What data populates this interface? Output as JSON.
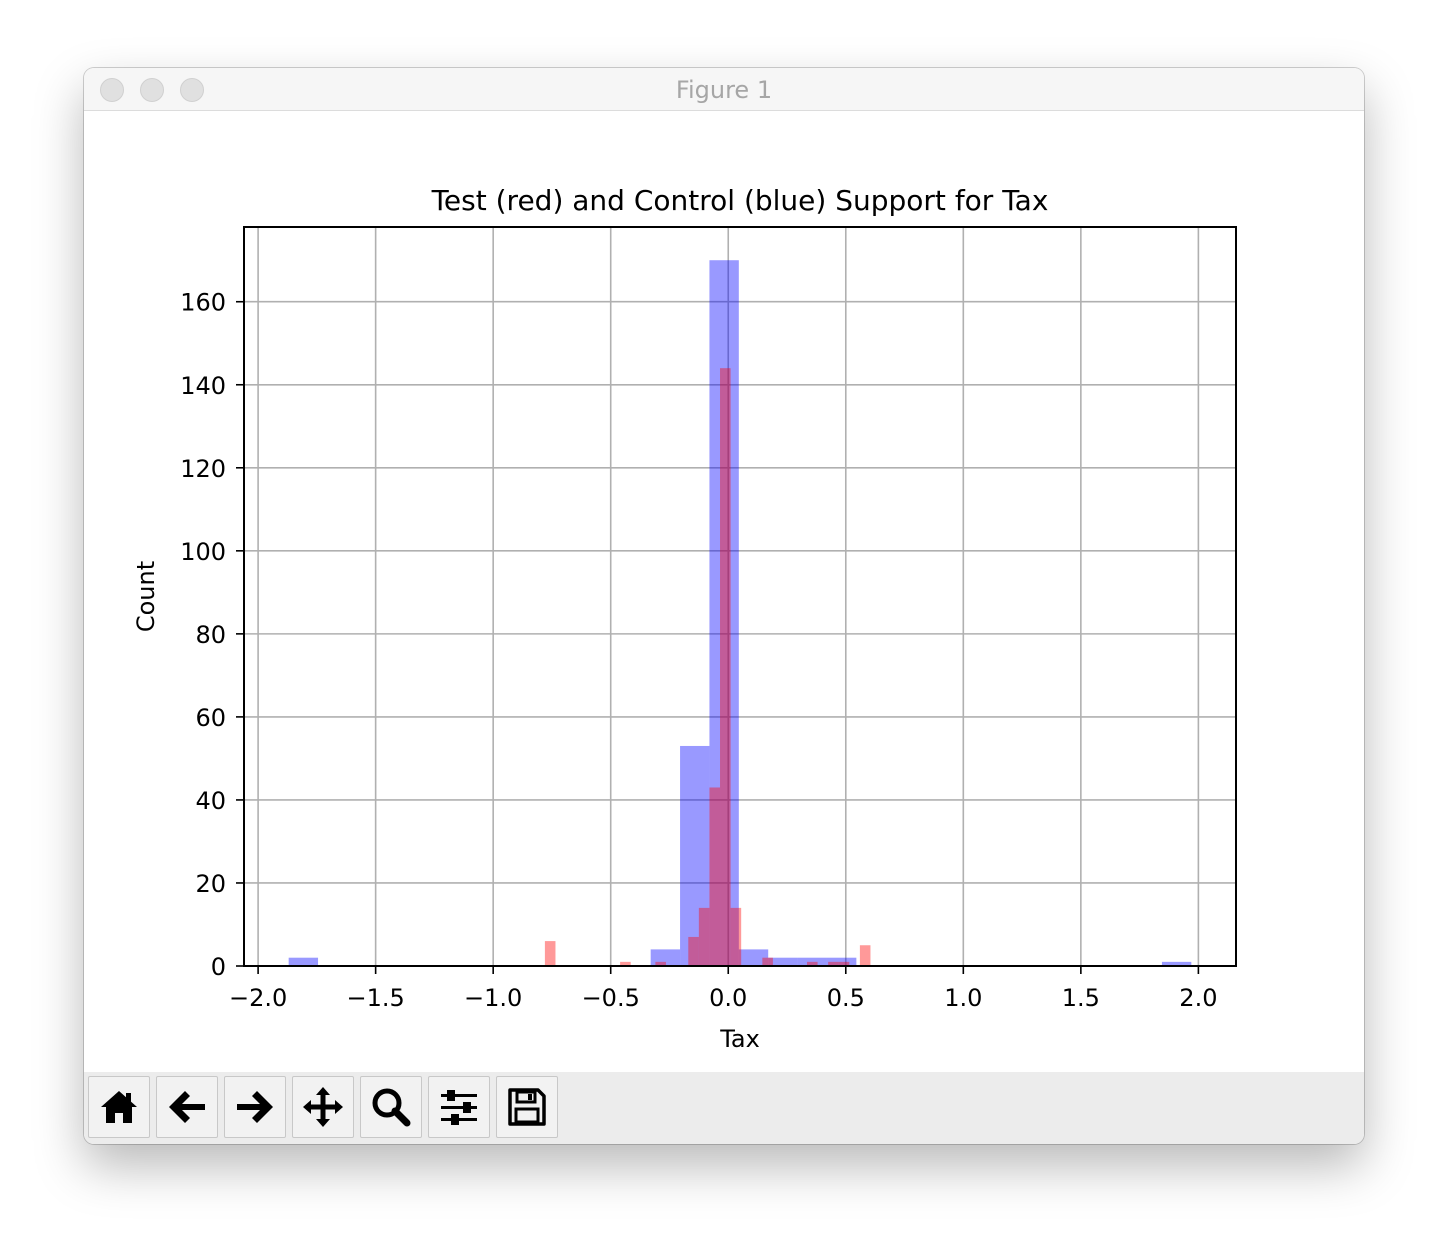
{
  "window": {
    "title": "Figure 1"
  },
  "toolbar": {
    "buttons": [
      {
        "name": "home",
        "icon": "home-icon"
      },
      {
        "name": "back",
        "icon": "arrow-left-icon"
      },
      {
        "name": "forward",
        "icon": "arrow-right-icon"
      },
      {
        "name": "pan",
        "icon": "move-icon"
      },
      {
        "name": "zoom",
        "icon": "magnifier-icon"
      },
      {
        "name": "configure",
        "icon": "sliders-icon"
      },
      {
        "name": "save",
        "icon": "floppy-disk-icon"
      }
    ]
  },
  "chart_data": {
    "type": "bar",
    "title": "Test (red) and Control (blue) Support for Tax",
    "xlabel": "Tax",
    "ylabel": "Count",
    "xlim": [
      -2.06,
      2.16
    ],
    "ylim": [
      0,
      178
    ],
    "xticks": [
      -2.0,
      -1.5,
      -1.0,
      -0.5,
      0.0,
      0.5,
      1.0,
      1.5,
      2.0
    ],
    "xtick_labels": [
      "−2.0",
      "−1.5",
      "−1.0",
      "−0.5",
      "0.0",
      "0.5",
      "1.0",
      "1.5",
      "2.0"
    ],
    "yticks": [
      0,
      20,
      40,
      60,
      80,
      100,
      120,
      140,
      160
    ],
    "ytick_labels": [
      "0",
      "20",
      "40",
      "60",
      "80",
      "100",
      "120",
      "140",
      "160"
    ],
    "grid": true,
    "series": [
      {
        "color": "#0000ff",
        "alpha": 0.4,
        "bins": [
          {
            "x0": -1.87,
            "x1": -1.745,
            "count": 2
          },
          {
            "x0": -0.33,
            "x1": -0.205,
            "count": 4
          },
          {
            "x0": -0.205,
            "x1": -0.08,
            "count": 53
          },
          {
            "x0": -0.08,
            "x1": 0.045,
            "count": 170
          },
          {
            "x0": 0.045,
            "x1": 0.17,
            "count": 4
          },
          {
            "x0": 0.17,
            "x1": 0.295,
            "count": 2
          },
          {
            "x0": 0.295,
            "x1": 0.42,
            "count": 2
          },
          {
            "x0": 0.42,
            "x1": 0.545,
            "count": 2
          },
          {
            "x0": 1.845,
            "x1": 1.97,
            "count": 1
          }
        ]
      },
      {
        "color": "#ff0000",
        "alpha": 0.4,
        "bins": [
          {
            "x0": -0.78,
            "x1": -0.735,
            "count": 6
          },
          {
            "x0": -0.46,
            "x1": -0.415,
            "count": 1
          },
          {
            "x0": -0.31,
            "x1": -0.265,
            "count": 1
          },
          {
            "x0": -0.17,
            "x1": -0.125,
            "count": 7
          },
          {
            "x0": -0.125,
            "x1": -0.08,
            "count": 14
          },
          {
            "x0": -0.08,
            "x1": -0.035,
            "count": 43
          },
          {
            "x0": -0.035,
            "x1": 0.01,
            "count": 144
          },
          {
            "x0": 0.01,
            "x1": 0.055,
            "count": 14
          },
          {
            "x0": 0.145,
            "x1": 0.19,
            "count": 2
          },
          {
            "x0": 0.335,
            "x1": 0.38,
            "count": 1
          },
          {
            "x0": 0.425,
            "x1": 0.47,
            "count": 1
          },
          {
            "x0": 0.47,
            "x1": 0.515,
            "count": 1
          },
          {
            "x0": 0.56,
            "x1": 0.605,
            "count": 5
          }
        ]
      }
    ]
  }
}
